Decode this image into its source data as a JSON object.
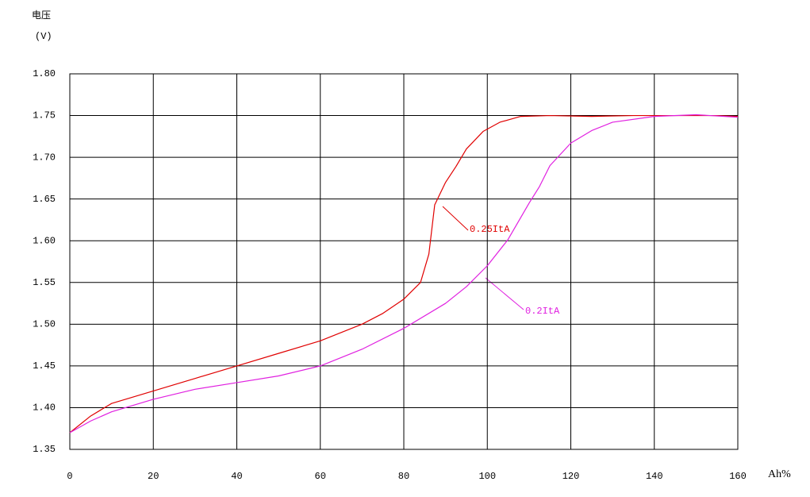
{
  "chart_data": {
    "type": "line",
    "y_label": "电压",
    "y_unit": "(V)",
    "x_label": "Ah%",
    "xlim": [
      0,
      160
    ],
    "xticks": [
      0,
      20,
      40,
      60,
      80,
      100,
      120,
      140,
      160
    ],
    "ylim": [
      1.35,
      1.8
    ],
    "yticks": [
      1.35,
      {
        "value": 1.4,
        "label": "1.40"
      },
      1.45,
      {
        "value": 1.5,
        "label": "1.50"
      },
      1.55,
      {
        "value": 1.6,
        "label": "1.60"
      },
      1.65,
      {
        "value": 1.7,
        "label": "1.70"
      },
      1.75,
      {
        "value": 1.8,
        "label": "1.80"
      }
    ],
    "grid": true,
    "series": [
      {
        "name": "0.25ItA",
        "color": "#e00000",
        "x": [
          0,
          5,
          10,
          20,
          30,
          40,
          50,
          60,
          70,
          75,
          80,
          84,
          86,
          87.4,
          90,
          92.5,
          95,
          99,
          103,
          108,
          115,
          125,
          135,
          145,
          155,
          160
        ],
        "values": [
          1.37,
          1.39,
          1.405,
          1.42,
          1.435,
          1.45,
          1.465,
          1.48,
          1.5,
          1.513,
          1.53,
          1.55,
          1.584,
          1.643,
          1.67,
          1.689,
          1.71,
          1.731,
          1.742,
          1.749,
          1.75,
          1.749,
          1.75,
          1.75,
          1.75,
          1.749
        ]
      },
      {
        "name": "0.2ItA",
        "color": "#e020e0",
        "x": [
          0,
          5,
          10,
          20,
          30,
          40,
          50,
          60,
          70,
          80,
          90,
          95,
          100,
          104.9,
          110,
          112.5,
          115,
          120,
          125,
          130,
          140,
          150,
          160
        ],
        "values": [
          1.37,
          1.384,
          1.395,
          1.41,
          1.422,
          1.43,
          1.438,
          1.45,
          1.47,
          1.495,
          1.525,
          1.545,
          1.57,
          1.601,
          1.645,
          1.665,
          1.69,
          1.717,
          1.732,
          1.742,
          1.749,
          1.751,
          1.748
        ]
      }
    ]
  }
}
